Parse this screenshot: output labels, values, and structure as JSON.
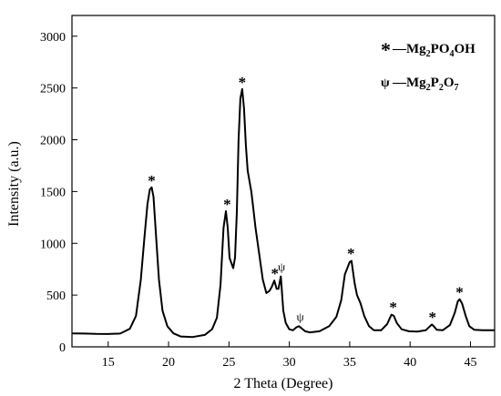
{
  "chart_data": {
    "type": "line",
    "title": "",
    "xlabel": "2 Theta (Degree)",
    "ylabel": "Intensity (a.u.)",
    "xlim": [
      12,
      47
    ],
    "ylim": [
      0,
      3200
    ],
    "xticks": [
      15,
      20,
      25,
      30,
      35,
      40,
      45
    ],
    "yticks": [
      0,
      500,
      1000,
      1500,
      2000,
      2500,
      3000
    ],
    "grid": false,
    "legend_position": "top-right",
    "legend": [
      {
        "symbol": "*",
        "dash": "—",
        "formula": [
          {
            "t": "Mg",
            "sub": false
          },
          {
            "t": "2",
            "sub": true
          },
          {
            "t": "PO",
            "sub": false
          },
          {
            "t": "4",
            "sub": true
          },
          {
            "t": "OH",
            "sub": false
          }
        ]
      },
      {
        "symbol": "ψ",
        "dash": "—",
        "formula": [
          {
            "t": "Mg",
            "sub": false
          },
          {
            "t": "2",
            "sub": true
          },
          {
            "t": "P",
            "sub": false
          },
          {
            "t": "2",
            "sub": true
          },
          {
            "t": "O",
            "sub": false
          },
          {
            "t": "7",
            "sub": true
          }
        ]
      }
    ],
    "series": [
      {
        "color": "#000000",
        "x": [
          12.0,
          13.0,
          14.0,
          15.0,
          16.0,
          16.8,
          17.3,
          17.7,
          18.0,
          18.25,
          18.45,
          18.6,
          18.75,
          18.95,
          19.2,
          19.5,
          19.9,
          20.4,
          21.0,
          22.0,
          23.0,
          23.6,
          24.0,
          24.3,
          24.55,
          24.75,
          24.9,
          25.05,
          25.2,
          25.35,
          25.5,
          25.65,
          25.8,
          25.95,
          26.1,
          26.25,
          26.4,
          26.55,
          26.7,
          26.85,
          27.0,
          27.2,
          27.5,
          27.8,
          28.1,
          28.35,
          28.55,
          28.75,
          28.95,
          29.1,
          29.3,
          29.5,
          29.7,
          30.0,
          30.3,
          30.6,
          30.8,
          31.0,
          31.3,
          31.7,
          32.5,
          33.3,
          33.9,
          34.3,
          34.6,
          34.8,
          35.0,
          35.15,
          35.4,
          35.6,
          35.9,
          36.2,
          36.6,
          37.0,
          37.6,
          38.1,
          38.45,
          38.65,
          38.9,
          39.3,
          39.9,
          40.6,
          41.3,
          41.65,
          41.8,
          41.95,
          42.2,
          42.7,
          43.3,
          43.7,
          43.95,
          44.1,
          44.3,
          44.6,
          44.9,
          45.3,
          46.0,
          47.0
        ],
        "y": [
          130,
          128,
          125,
          124,
          128,
          175,
          300,
          650,
          1050,
          1380,
          1520,
          1540,
          1450,
          1100,
          650,
          350,
          200,
          130,
          100,
          95,
          115,
          170,
          280,
          600,
          1150,
          1310,
          1150,
          860,
          810,
          760,
          860,
          1300,
          2000,
          2400,
          2490,
          2300,
          1950,
          1700,
          1600,
          1500,
          1350,
          1150,
          900,
          650,
          520,
          540,
          580,
          640,
          560,
          560,
          680,
          350,
          230,
          170,
          160,
          190,
          200,
          180,
          150,
          140,
          150,
          200,
          290,
          450,
          700,
          760,
          820,
          830,
          620,
          500,
          420,
          300,
          200,
          160,
          160,
          220,
          310,
          300,
          230,
          170,
          150,
          148,
          160,
          200,
          215,
          200,
          165,
          160,
          210,
          330,
          440,
          460,
          420,
          300,
          200,
          165,
          160,
          160
        ]
      }
    ],
    "annotations": [
      {
        "text": "*",
        "x": 18.6,
        "y": 1540
      },
      {
        "text": "*",
        "x": 24.85,
        "y": 1310
      },
      {
        "text": "*",
        "x": 26.1,
        "y": 2490
      },
      {
        "text": "*",
        "x": 28.8,
        "y": 640
      },
      {
        "text": "ψ",
        "x": 29.35,
        "y": 690
      },
      {
        "text": "ψ",
        "x": 30.9,
        "y": 205
      },
      {
        "text": "*",
        "x": 35.1,
        "y": 835
      },
      {
        "text": "*",
        "x": 38.6,
        "y": 315
      },
      {
        "text": "*",
        "x": 41.85,
        "y": 218
      },
      {
        "text": "*",
        "x": 44.1,
        "y": 462
      }
    ]
  }
}
